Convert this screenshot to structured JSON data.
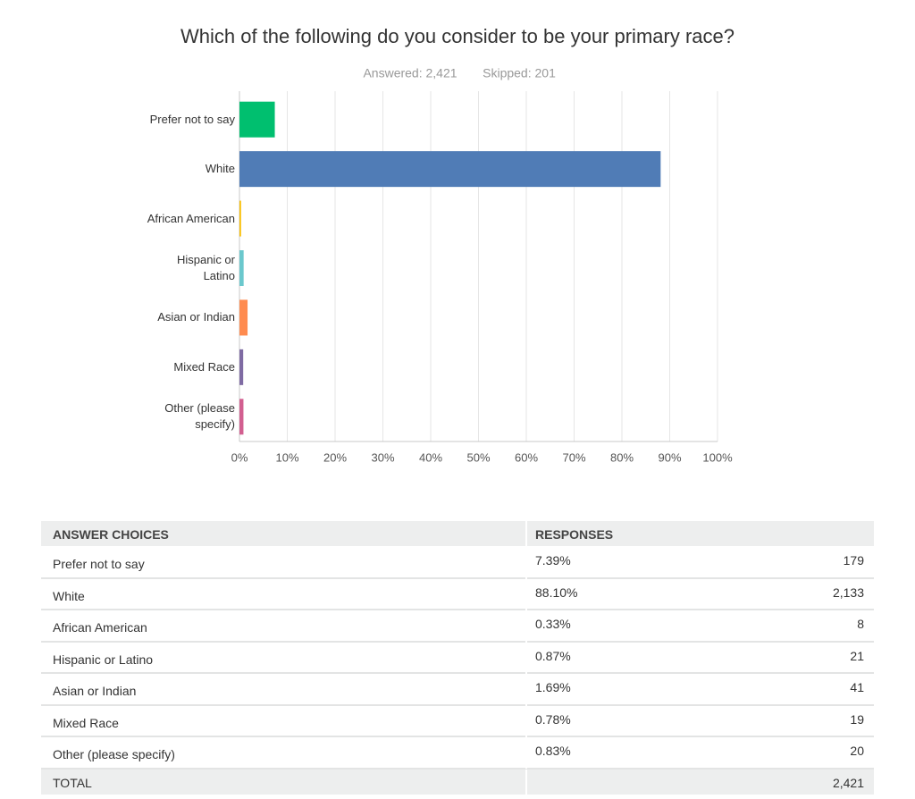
{
  "chart_data": {
    "type": "bar",
    "orientation": "horizontal",
    "title": "Which of the following do you consider to be your primary race?",
    "subtitle": [
      "Answered: 2,421",
      "Skipped: 201"
    ],
    "categories": [
      "Prefer not to say",
      "White",
      "African American",
      "Hispanic or Latino",
      "Asian or Indian",
      "Mixed Race",
      "Other (please specify)"
    ],
    "values": [
      7.39,
      88.1,
      0.33,
      0.87,
      1.69,
      0.78,
      0.83
    ],
    "colors": [
      "#00bf6f",
      "#507cb6",
      "#f9be00",
      "#6bc8cd",
      "#ff8b4f",
      "#7f6ba3",
      "#d25f90"
    ],
    "xlim": [
      0,
      100
    ],
    "xticks": [
      {
        "value": 0,
        "label": "0%"
      },
      {
        "value": 10,
        "label": "10%"
      },
      {
        "value": 20,
        "label": "20%"
      },
      {
        "value": 30,
        "label": "30%"
      },
      {
        "value": 40,
        "label": "40%"
      },
      {
        "value": 50,
        "label": "50%"
      },
      {
        "value": 60,
        "label": "60%"
      },
      {
        "value": 70,
        "label": "70%"
      },
      {
        "value": 80,
        "label": "80%"
      },
      {
        "value": 90,
        "label": "90%"
      },
      {
        "value": 100,
        "label": "100%"
      }
    ],
    "grid": true
  },
  "table": {
    "header": [
      "ANSWER CHOICES",
      "RESPONSES"
    ],
    "rows": [
      [
        "Prefer not to say",
        "7.39%",
        "179"
      ],
      [
        "White",
        "88.10%",
        "2,133"
      ],
      [
        "African American",
        "0.33%",
        "8"
      ],
      [
        "Hispanic or Latino",
        "0.87%",
        "21"
      ],
      [
        "Asian or Indian",
        "1.69%",
        "41"
      ],
      [
        "Mixed Race",
        "0.78%",
        "19"
      ],
      [
        "Other (please specify)",
        "0.83%",
        "20"
      ]
    ],
    "total": [
      "TOTAL",
      "2,421"
    ]
  }
}
